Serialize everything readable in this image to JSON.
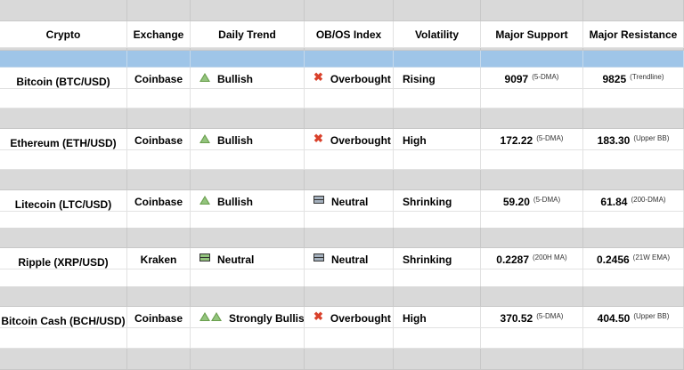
{
  "headers": [
    "Crypto",
    "Exchange",
    "Daily Trend",
    "OB/OS Index",
    "Volatility",
    "Major Support",
    "Major Resistance"
  ],
  "rows": [
    {
      "crypto": "Bitcoin (BTC/USD)",
      "exchange": "Coinbase",
      "trend": "Bullish",
      "trend_icon": "triangle-up-icon",
      "obos": "Overbought",
      "obos_icon": "red-x-icon",
      "volatility": "Rising",
      "support": "9097",
      "support_note": "(5-DMA)",
      "resistance": "9825",
      "resistance_note": "(Trendline)"
    },
    {
      "crypto": "Ethereum (ETH/USD)",
      "exchange": "Coinbase",
      "trend": "Bullish",
      "trend_icon": "triangle-up-icon",
      "obos": "Overbought",
      "obos_icon": "red-x-icon",
      "volatility": "High",
      "support": "172.22",
      "support_note": "(5-DMA)",
      "resistance": "183.30",
      "resistance_note": "(Upper BB)"
    },
    {
      "crypto": "Litecoin (LTC/USD)",
      "exchange": "Coinbase",
      "trend": "Bullish",
      "trend_icon": "triangle-up-icon",
      "obos": "Neutral",
      "obos_icon": "grey-bars-icon",
      "volatility": "Shrinking",
      "support": "59.20",
      "support_note": "(5-DMA)",
      "resistance": "61.84",
      "resistance_note": "(200-DMA)"
    },
    {
      "crypto": "Ripple (XRP/USD)",
      "exchange": "Kraken",
      "trend": "Neutral",
      "trend_icon": "green-bars-icon",
      "obos": "Neutral",
      "obos_icon": "grey-bars-icon",
      "volatility": "Shrinking",
      "support": "0.2287",
      "support_note": "(200H MA)",
      "resistance": "0.2456",
      "resistance_note": "(21W EMA)"
    },
    {
      "crypto": "Bitcoin Cash (BCH/USD)",
      "exchange": "Coinbase",
      "trend": "Strongly Bullish",
      "trend_icon": "double-triangle-up-icon",
      "obos": "Overbought",
      "obos_icon": "red-x-icon",
      "volatility": "High",
      "support": "370.52",
      "support_note": "(5-DMA)",
      "resistance": "404.50",
      "resistance_note": "(Upper BB)"
    }
  ],
  "colors": {
    "header_band": "#d9d9d9",
    "selected_band": "#9fc5e8",
    "bullish": "#93c47d",
    "overbought": "#d9412b"
  }
}
